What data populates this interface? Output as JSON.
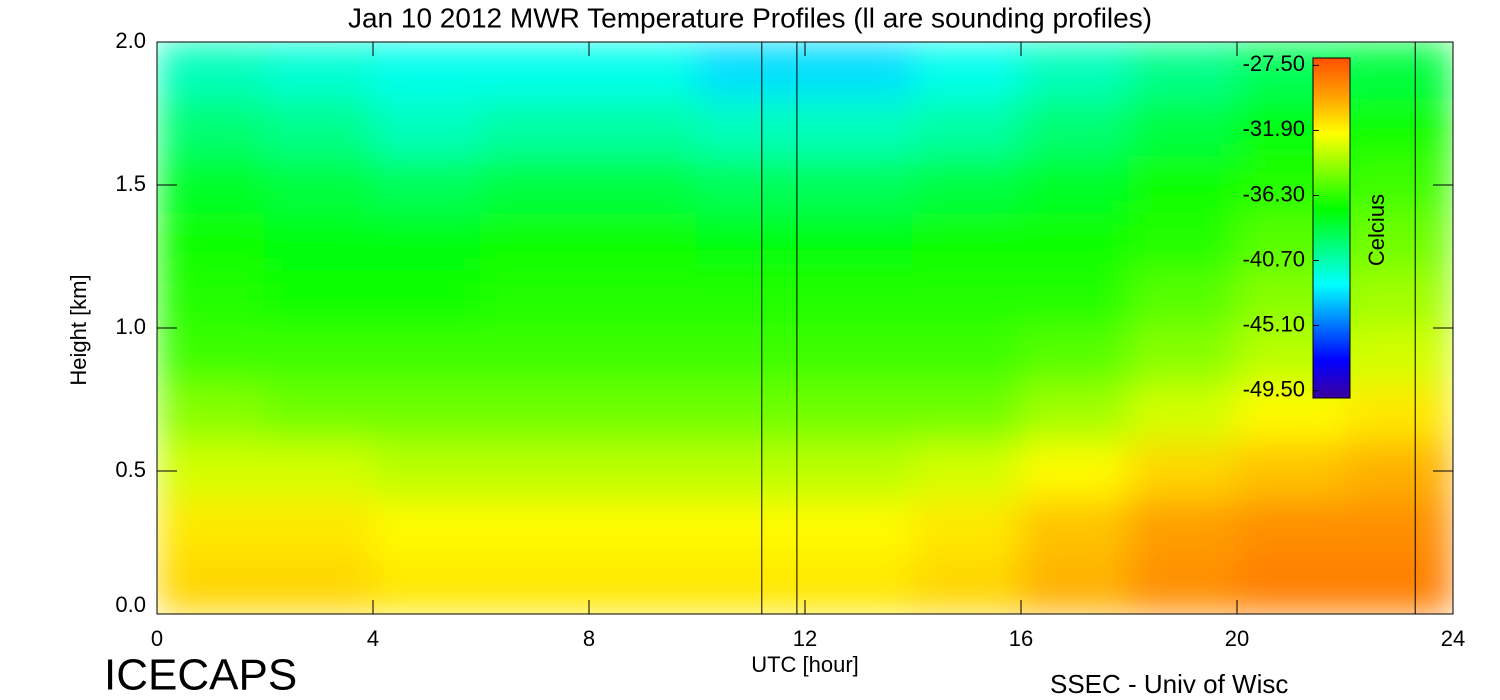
{
  "chart_data": {
    "type": "heatmap",
    "title": "Jan 10 2012 MWR Temperature Profiles (ll are sounding profiles)",
    "x_label": "UTC [hour]",
    "y_label": "Height [km]",
    "logo": "ICECAPS",
    "credit": "SSEC - Univ of Wisc",
    "colorbar_label": "Celcius",
    "xlim": [
      0,
      24
    ],
    "xticks": [
      0,
      4,
      8,
      12,
      16,
      20,
      24
    ],
    "ylim": [
      0,
      2
    ],
    "yticks": [
      {
        "value": 0,
        "label": "0.0"
      },
      0.5,
      {
        "value": 1,
        "label": "1.0"
      },
      1.5,
      {
        "value": 2,
        "label": "2.0"
      }
    ],
    "x": [
      1,
      3,
      5,
      7,
      9,
      11,
      13,
      15,
      17,
      19,
      21,
      23
    ],
    "heights": [
      1.9,
      1.7,
      1.5,
      1.3,
      1.1,
      0.9,
      0.7,
      0.5,
      0.3,
      0.1
    ],
    "values": [
      [
        -41,
        -41.5,
        -42,
        -42,
        -42,
        -43,
        -43,
        -42,
        -41,
        -40,
        -39,
        -38.5
      ],
      [
        -39.5,
        -40,
        -41,
        -40.5,
        -40.5,
        -41,
        -41,
        -40.5,
        -39.5,
        -38.5,
        -37.5,
        -37
      ],
      [
        -38,
        -38.5,
        -39,
        -38.5,
        -38.5,
        -39,
        -39,
        -38.5,
        -38,
        -37,
        -36.5,
        -36
      ],
      [
        -37,
        -37.5,
        -37.5,
        -37,
        -37,
        -37.5,
        -37.5,
        -37,
        -37,
        -36.5,
        -35.5,
        -35
      ],
      [
        -36.5,
        -37,
        -37,
        -36.5,
        -36.5,
        -36.5,
        -36.5,
        -36.5,
        -36.5,
        -35.5,
        -34.5,
        -34
      ],
      [
        -36,
        -36,
        -36,
        -36,
        -36,
        -36,
        -36,
        -36,
        -35.5,
        -34.5,
        -33.5,
        -33
      ],
      [
        -34.5,
        -35,
        -35,
        -35,
        -35,
        -35,
        -35,
        -35,
        -34,
        -33,
        -32,
        -31.5
      ],
      [
        -33,
        -33,
        -33.5,
        -33.5,
        -33.5,
        -33.5,
        -33.5,
        -33,
        -32,
        -31,
        -30.5,
        -30
      ],
      [
        -31.5,
        -31.5,
        -32,
        -32,
        -32,
        -32,
        -32,
        -31.5,
        -30.5,
        -29.5,
        -29,
        -29
      ],
      [
        -31,
        -31,
        -31.5,
        -31.5,
        -31.5,
        -31.5,
        -31.5,
        -31,
        -30,
        -29,
        -28.5,
        -28.5
      ]
    ],
    "sounding_times": [
      11.2,
      11.85,
      23.3
    ],
    "clim": [
      -50,
      -27
    ],
    "cticks": [
      {
        "value": -27.5,
        "label": "-27.50"
      },
      {
        "value": -31.9,
        "label": "-31.90"
      },
      {
        "value": -36.3,
        "label": "-36.30"
      },
      {
        "value": -40.7,
        "label": "-40.70"
      },
      {
        "value": -45.1,
        "label": "-45.10"
      },
      {
        "value": -49.5,
        "label": "-49.50"
      }
    ],
    "colormap": [
      "#3c00a0",
      "#0000ff",
      "#0080ff",
      "#00ffff",
      "#00ff80",
      "#00ff00",
      "#80ff00",
      "#ffff00",
      "#ffa000",
      "#ff5000"
    ]
  }
}
